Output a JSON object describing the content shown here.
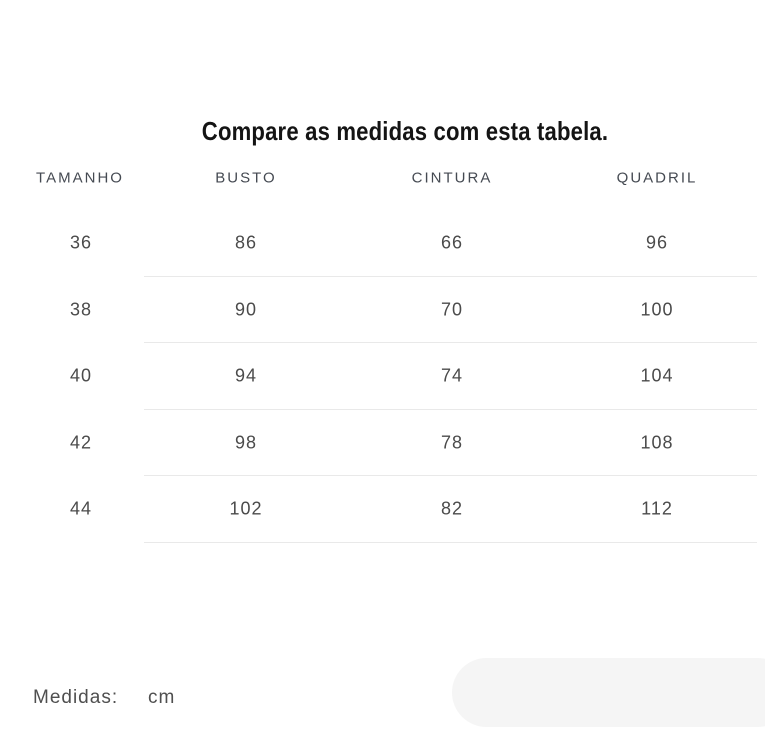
{
  "title": "Compare as medidas com esta tabela.",
  "table": {
    "headers": [
      "TAMANHO",
      "BUSTO",
      "CINTURA",
      "QUADRIL"
    ],
    "rows": [
      [
        "36",
        "86",
        "66",
        "96"
      ],
      [
        "38",
        "90",
        "70",
        "100"
      ],
      [
        "40",
        "94",
        "74",
        "104"
      ],
      [
        "42",
        "98",
        "78",
        "108"
      ],
      [
        "44",
        "102",
        "82",
        "112"
      ]
    ]
  },
  "footer": {
    "label": "Medidas:",
    "value": "cm"
  },
  "colors": {
    "title_text": "#141414",
    "body_text": "#4b4b4b",
    "header_text": "#454a52",
    "divider": "#e9e9e9",
    "pill_background": "#f5f5f5"
  }
}
